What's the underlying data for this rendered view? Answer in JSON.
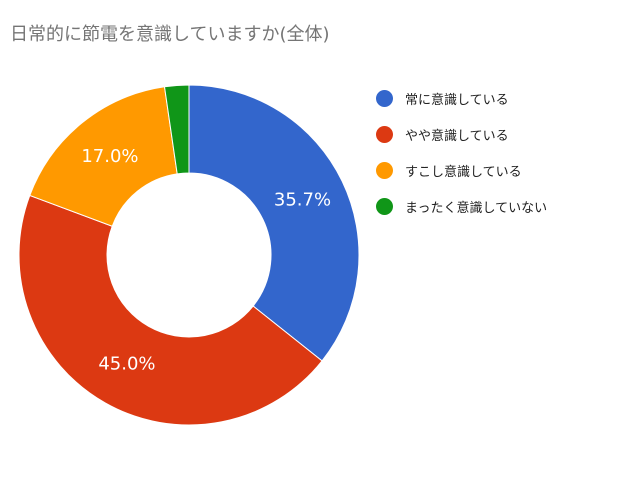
{
  "chart_data": {
    "type": "pie",
    "donut": true,
    "title": "日常的に節電を意識していますか(全体)",
    "legend_position": "right",
    "slices": [
      {
        "label": "常に意識している",
        "value": 35.7,
        "display": "35.7%",
        "color": "#3366cc"
      },
      {
        "label": "やや意識している",
        "value": 45.0,
        "display": "45.0%",
        "color": "#dc3912"
      },
      {
        "label": "すこし意識している",
        "value": 17.0,
        "display": "17.0%",
        "color": "#ff9900"
      },
      {
        "label": "まったく意識していない",
        "value": 2.3,
        "display": "",
        "color": "#109618"
      }
    ]
  }
}
